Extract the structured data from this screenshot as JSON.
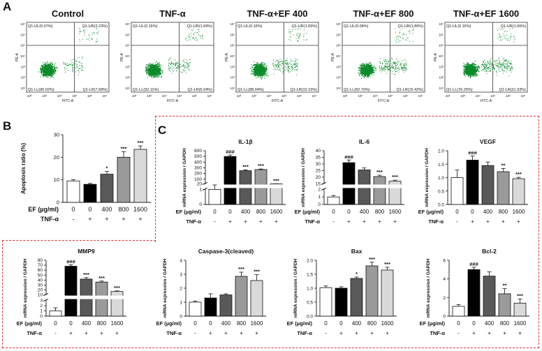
{
  "panels": {
    "a": "A",
    "b": "B",
    "c": "C"
  },
  "flow": [
    {
      "title": "Control",
      "ul": "Q1-UL(0.07%)",
      "ur": "Q1-UR(2.23%)",
      "ll": "Q1-LL(90.02%)",
      "lr": "Q1-LR(7.68%)"
    },
    {
      "title": "TNF-α",
      "ul": "Q1-UL(0.16%)",
      "ur": "Q1-UR(1.69%)",
      "ll": "Q1-LL(92.11%)",
      "lr": "Q1-LR(6.04%)"
    },
    {
      "title": "TNF-α+EF 400",
      "ul": "Q1-UL(0.16%)",
      "ur": "Q1-UR(1.65%)",
      "ll": "Q1-LL(88.04%)",
      "lr": "Q1-LR(10.15%)"
    },
    {
      "title": "TNF-α+EF 800",
      "ul": "Q1-UL(0.08%)",
      "ur": "Q1-UR(1.80%)",
      "ll": "Q1-LL(82.70%)",
      "lr": "Q1-LR(15.42%)"
    },
    {
      "title": "TNF-α+EF 1600",
      "ul": "Q1-UL(0.16%)",
      "ur": "Q1-UR(1.66%)",
      "ll": "Q1-LL(76.25%)",
      "lr": "Q1-LR(21.93%)"
    }
  ],
  "flow_axes": {
    "x": "FITC-A",
    "y": "PE-A",
    "xticks": [
      "10²",
      "10³",
      "10⁴",
      "10⁵",
      "10⁶",
      "10⁷"
    ],
    "yticks": [
      "10¹",
      "10²",
      "10³",
      "10⁴",
      "10⁵",
      "10⁶",
      "10⁷"
    ]
  },
  "xlabels": {
    "ef_title": "EF (µg/ml)",
    "ef": [
      "0",
      "0",
      "400",
      "800",
      "1600"
    ],
    "tnf_title": "TNF-α",
    "tnf": [
      "-",
      "+",
      "+",
      "+",
      "+"
    ]
  },
  "chart_data": [
    {
      "id": "B",
      "type": "bar",
      "title": "",
      "ylabel": "Apoptosis ratio (%)",
      "categories": [
        "0",
        "0",
        "400",
        "800",
        "1600"
      ],
      "values": [
        9.5,
        8,
        12.5,
        20,
        23.5
      ],
      "errors": [
        0.6,
        0.4,
        1.2,
        2.5,
        1.5
      ],
      "ylim": [
        0,
        30
      ],
      "yticks": [
        0,
        10,
        20,
        30
      ],
      "annotations": [
        "",
        "",
        "*",
        "***",
        "***"
      ]
    },
    {
      "id": "IL1b",
      "type": "bar",
      "title": "IL-1β",
      "ylabel": "mRNA expression / GAPDH",
      "categories": [
        "0",
        "0",
        "400",
        "800",
        "1600"
      ],
      "values": [
        1,
        500,
        250,
        270,
        20
      ],
      "errors": [
        0.1,
        25,
        15,
        10,
        2
      ],
      "axis_break": true,
      "lower_ticks": [
        0,
        1
      ],
      "upper_ticks": [
        20,
        100,
        200,
        300,
        400,
        500,
        600
      ],
      "annotations": [
        "",
        "###",
        "***",
        "***",
        "***"
      ]
    },
    {
      "id": "IL6",
      "type": "bar",
      "title": "IL-6",
      "ylabel": "mRNA expression / GAPDH",
      "categories": [
        "0",
        "0",
        "400",
        "800",
        "1600"
      ],
      "values": [
        1,
        31,
        25.5,
        20.5,
        17
      ],
      "errors": [
        0.2,
        2,
        1.5,
        1,
        0.8
      ],
      "axis_break": true,
      "lower_ticks": [
        0,
        1,
        2
      ],
      "upper_ticks": [
        15,
        20,
        25,
        30,
        35,
        40
      ],
      "annotations": [
        "",
        "###",
        "",
        "***",
        "***"
      ]
    },
    {
      "id": "VEGF",
      "type": "bar",
      "title": "VEGF",
      "ylabel": "mRNA expression / GAPDH",
      "categories": [
        "0",
        "0",
        "400",
        "800",
        "1600"
      ],
      "values": [
        1.0,
        1.65,
        1.45,
        1.22,
        0.96
      ],
      "errors": [
        0.28,
        0.15,
        0.13,
        0.12,
        0.05
      ],
      "ylim": [
        0,
        2
      ],
      "yticks": [
        0.0,
        0.5,
        1.0,
        1.5,
        2.0
      ],
      "annotations": [
        "",
        "###",
        "",
        "**",
        "***"
      ]
    },
    {
      "id": "MMP9",
      "type": "bar",
      "title": "MMP9",
      "ylabel": "mRNA expression / GAPDH",
      "categories": [
        "0",
        "0",
        "400",
        "800",
        "1600"
      ],
      "values": [
        1,
        68,
        42,
        36,
        17
      ],
      "errors": [
        0.6,
        3,
        3,
        2,
        1
      ],
      "axis_break": true,
      "lower_ticks": [
        0,
        1,
        2,
        3
      ],
      "upper_ticks": [
        10,
        20,
        30,
        40,
        50,
        60,
        70,
        80
      ],
      "annotations": [
        "",
        "###",
        "***",
        "***",
        "***"
      ]
    },
    {
      "id": "Casp3",
      "type": "bar",
      "title": "Caspase-3(cleaved)",
      "ylabel": "mRNA expression / GAPDH",
      "categories": [
        "0",
        "0",
        "400",
        "800",
        "1600"
      ],
      "values": [
        1.0,
        1.3,
        1.52,
        2.85,
        2.55
      ],
      "errors": [
        0.08,
        0.3,
        0.08,
        0.3,
        0.42
      ],
      "ylim": [
        0,
        4
      ],
      "yticks": [
        0,
        1,
        2,
        3,
        4
      ],
      "annotations": [
        "",
        "",
        "",
        "***",
        "***"
      ]
    },
    {
      "id": "Bax",
      "type": "bar",
      "title": "Bax",
      "ylabel": "mRNA expression / GAPDH",
      "categories": [
        "0",
        "0",
        "400",
        "800",
        "1600"
      ],
      "values": [
        1.02,
        1.0,
        1.35,
        1.8,
        1.65
      ],
      "errors": [
        0.06,
        0.05,
        0.05,
        0.13,
        0.1
      ],
      "ylim": [
        0,
        2.0
      ],
      "yticks": [
        0.0,
        0.5,
        1.0,
        1.5,
        2.0
      ],
      "annotations": [
        "",
        "",
        "*",
        "***",
        "***"
      ]
    },
    {
      "id": "Bcl2",
      "type": "bar",
      "title": "Bcl-2",
      "ylabel": "mRNA expression / GAPDH",
      "categories": [
        "0",
        "0",
        "400",
        "800",
        "1600"
      ],
      "values": [
        1.05,
        5.0,
        4.3,
        2.4,
        1.4
      ],
      "errors": [
        0.2,
        0.25,
        0.45,
        0.55,
        0.45
      ],
      "ylim": [
        0,
        6
      ],
      "yticks": [
        0,
        2,
        4,
        6
      ],
      "annotations": [
        "",
        "###",
        "",
        "**",
        "***"
      ]
    }
  ],
  "colors": {
    "bars": [
      "#ffffff",
      "#000000",
      "#595959",
      "#9a9a9a",
      "#d9d9d9"
    ],
    "dash": "#e0302c",
    "dots": "#0c8a2a"
  }
}
